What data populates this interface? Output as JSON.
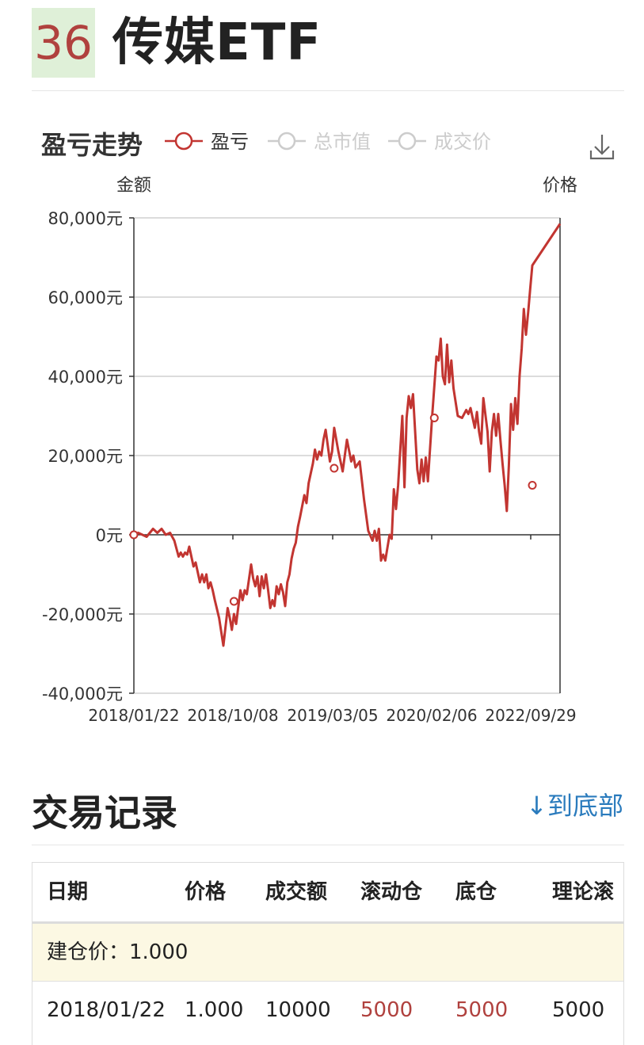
{
  "header": {
    "rank": "36",
    "fund_name": "传媒ETF"
  },
  "chart": {
    "title": "盈亏走势",
    "legend": [
      {
        "label": "盈亏",
        "active": true,
        "color": "#c23531"
      },
      {
        "label": "总市值",
        "active": false,
        "color": "#cccccc"
      },
      {
        "label": "成交价",
        "active": false,
        "color": "#cccccc"
      }
    ],
    "download_icon": "download-icon",
    "left_axis_name": "金额",
    "right_axis_name": "价格",
    "y_tick_labels": [
      "80,000元",
      "60,000元",
      "40,000元",
      "20,000元",
      "0元",
      "-20,000元",
      "-40,000元"
    ],
    "x_tick_labels": [
      "2018/01/22",
      "2018/10/08",
      "2019/03/05",
      "2020/02/06",
      "2022/09/29"
    ]
  },
  "chart_data": {
    "type": "line",
    "ylim": [
      -40000,
      80000
    ],
    "series": [
      {
        "name": "盈亏",
        "color": "#c23531",
        "points": [
          [
            0.0,
            0
          ],
          [
            0.01,
            500
          ],
          [
            0.02,
            0
          ],
          [
            0.03,
            -500
          ],
          [
            0.045,
            1500
          ],
          [
            0.055,
            500
          ],
          [
            0.065,
            1500
          ],
          [
            0.075,
            0
          ],
          [
            0.085,
            500
          ],
          [
            0.095,
            -1500
          ],
          [
            0.105,
            -5500
          ],
          [
            0.11,
            -4500
          ],
          [
            0.115,
            -5500
          ],
          [
            0.12,
            -4500
          ],
          [
            0.125,
            -5000
          ],
          [
            0.13,
            -3000
          ],
          [
            0.14,
            -8000
          ],
          [
            0.145,
            -7000
          ],
          [
            0.155,
            -12000
          ],
          [
            0.16,
            -10000
          ],
          [
            0.165,
            -12000
          ],
          [
            0.17,
            -10000
          ],
          [
            0.175,
            -13500
          ],
          [
            0.18,
            -12000
          ],
          [
            0.185,
            -14000
          ],
          [
            0.19,
            -16500
          ],
          [
            0.2,
            -21000
          ],
          [
            0.21,
            -28000
          ],
          [
            0.22,
            -18500
          ],
          [
            0.225,
            -21000
          ],
          [
            0.23,
            -24000
          ],
          [
            0.235,
            -20000
          ],
          [
            0.24,
            -22500
          ],
          [
            0.25,
            -14000
          ],
          [
            0.255,
            -16500
          ],
          [
            0.26,
            -14000
          ],
          [
            0.265,
            -15000
          ],
          [
            0.275,
            -7500
          ],
          [
            0.28,
            -11000
          ],
          [
            0.285,
            -13000
          ],
          [
            0.29,
            -10500
          ],
          [
            0.295,
            -15500
          ],
          [
            0.3,
            -10500
          ],
          [
            0.305,
            -13500
          ],
          [
            0.31,
            -10000
          ],
          [
            0.315,
            -14000
          ],
          [
            0.32,
            -18500
          ],
          [
            0.325,
            -16500
          ],
          [
            0.33,
            -18000
          ],
          [
            0.335,
            -13000
          ],
          [
            0.34,
            -15000
          ],
          [
            0.345,
            -12500
          ],
          [
            0.35,
            -14500
          ],
          [
            0.355,
            -18000
          ],
          [
            0.36,
            -12000
          ],
          [
            0.365,
            -10000
          ],
          [
            0.37,
            -6000
          ],
          [
            0.375,
            -3500
          ],
          [
            0.38,
            -2000
          ],
          [
            0.385,
            2000
          ],
          [
            0.39,
            4500
          ],
          [
            0.4,
            10000
          ],
          [
            0.405,
            8000
          ],
          [
            0.41,
            13000
          ],
          [
            0.42,
            18000
          ],
          [
            0.425,
            21500
          ],
          [
            0.43,
            19000
          ],
          [
            0.435,
            21000
          ],
          [
            0.44,
            20000
          ],
          [
            0.445,
            24000
          ],
          [
            0.45,
            26500
          ],
          [
            0.46,
            18500
          ],
          [
            0.465,
            21000
          ],
          [
            0.47,
            27000
          ],
          [
            0.48,
            21000
          ],
          [
            0.49,
            16000
          ],
          [
            0.5,
            24000
          ],
          [
            0.51,
            18500
          ],
          [
            0.515,
            20000
          ],
          [
            0.52,
            17000
          ],
          [
            0.53,
            18500
          ],
          [
            0.54,
            9000
          ],
          [
            0.55,
            1000
          ],
          [
            0.56,
            -1500
          ],
          [
            0.565,
            1000
          ],
          [
            0.57,
            -1500
          ],
          [
            0.575,
            1500
          ],
          [
            0.58,
            -6500
          ],
          [
            0.585,
            -5000
          ],
          [
            0.59,
            -6500
          ],
          [
            0.6,
            0
          ],
          [
            0.605,
            -1000
          ],
          [
            0.61,
            11500
          ],
          [
            0.615,
            6500
          ],
          [
            0.62,
            12500
          ],
          [
            0.63,
            30000
          ],
          [
            0.635,
            12000
          ],
          [
            0.64,
            29500
          ],
          [
            0.645,
            35000
          ],
          [
            0.65,
            32000
          ],
          [
            0.655,
            35500
          ],
          [
            0.665,
            16500
          ],
          [
            0.67,
            13000
          ],
          [
            0.675,
            19000
          ],
          [
            0.68,
            13500
          ],
          [
            0.685,
            19500
          ],
          [
            0.69,
            13500
          ],
          [
            0.7,
            30000
          ],
          [
            0.71,
            45000
          ],
          [
            0.715,
            44000
          ],
          [
            0.72,
            49500
          ],
          [
            0.725,
            40000
          ],
          [
            0.73,
            38000
          ],
          [
            0.735,
            48000
          ],
          [
            0.74,
            38500
          ],
          [
            0.745,
            44000
          ],
          [
            0.75,
            37000
          ],
          [
            0.76,
            30000
          ],
          [
            0.77,
            29500
          ],
          [
            0.78,
            31500
          ],
          [
            0.785,
            30500
          ],
          [
            0.79,
            32000
          ],
          [
            0.8,
            27000
          ],
          [
            0.805,
            31000
          ],
          [
            0.81,
            26000
          ],
          [
            0.815,
            23000
          ],
          [
            0.82,
            34500
          ],
          [
            0.83,
            26000
          ],
          [
            0.835,
            16000
          ],
          [
            0.84,
            26000
          ],
          [
            0.845,
            30500
          ],
          [
            0.85,
            25000
          ],
          [
            0.855,
            30500
          ],
          [
            0.86,
            24000
          ],
          [
            0.865,
            18000
          ],
          [
            0.87,
            12500
          ],
          [
            0.875,
            6000
          ],
          [
            0.88,
            17500
          ],
          [
            0.885,
            33000
          ],
          [
            0.89,
            26500
          ],
          [
            0.895,
            34500
          ],
          [
            0.9,
            28000
          ],
          [
            0.905,
            40000
          ],
          [
            0.91,
            47000
          ],
          [
            0.915,
            57000
          ],
          [
            0.92,
            50500
          ],
          [
            0.925,
            56000
          ],
          [
            0.93,
            62000
          ],
          [
            0.935,
            68000
          ],
          [
            1.0,
            78500
          ]
        ],
        "markers": [
          [
            0.0,
            0
          ],
          [
            0.235,
            -16800
          ],
          [
            0.47,
            16800
          ],
          [
            0.705,
            29500
          ],
          [
            0.935,
            12500
          ]
        ]
      }
    ]
  },
  "trades": {
    "title": "交易记录",
    "to_bottom_label": "↓到底部",
    "columns": [
      "日期",
      "价格",
      "成交额",
      "滚动仓",
      "底仓",
      "理论滚"
    ],
    "build_price_label": "建仓价：1.000",
    "rows": [
      {
        "date": "2018/01/22",
        "price": "1.000",
        "amount": "10000",
        "rolling": "5000",
        "base": "5000",
        "theory": "5000"
      }
    ]
  }
}
